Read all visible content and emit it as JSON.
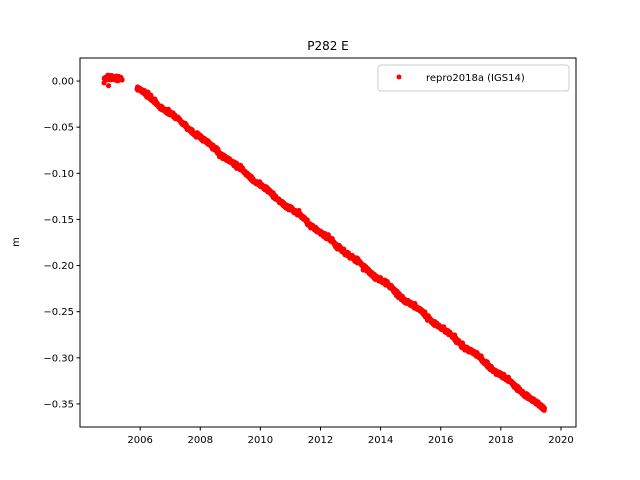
{
  "chart_data": {
    "type": "scatter",
    "title": "P282 E",
    "xlabel": "",
    "ylabel": "m",
    "xlim": [
      2004.0,
      2020.5
    ],
    "ylim": [
      -0.375,
      0.025
    ],
    "xticks": [
      2006,
      2008,
      2010,
      2012,
      2014,
      2016,
      2018,
      2020
    ],
    "yticks": [
      0.0,
      -0.05,
      -0.1,
      -0.15,
      -0.2,
      -0.25,
      -0.3,
      -0.35
    ],
    "ytick_labels": [
      "0.00",
      "−0.05",
      "−0.10",
      "−0.15",
      "−0.20",
      "−0.25",
      "−0.30",
      "−0.35"
    ],
    "grid": false,
    "legend_position": "top-right",
    "series": [
      {
        "name": "repro2018a (IGS14)",
        "color": "#ff0000",
        "marker": "circle",
        "segments": [
          {
            "x_start": 2004.8,
            "x_end": 2005.4,
            "y_start": 0.004,
            "y_end": 0.002
          },
          {
            "x_start": 2005.9,
            "x_end": 2019.45,
            "y_start": -0.007,
            "y_end": -0.356
          }
        ],
        "outliers": [
          {
            "x": 2004.95,
            "y": -0.005
          }
        ]
      }
    ]
  }
}
